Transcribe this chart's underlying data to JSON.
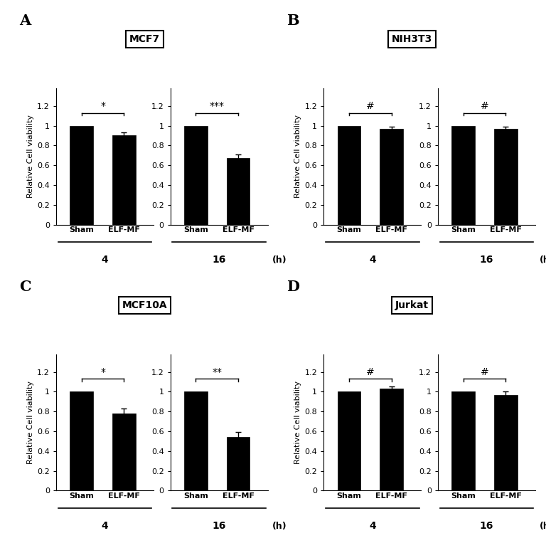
{
  "panels": [
    {
      "label": "A",
      "title": "MCF7",
      "data": [
        {
          "time": "4",
          "sham": 1.0,
          "sham_err": 0.0,
          "elfmf": 0.9,
          "elfmf_err": 0.03,
          "sig": "*"
        },
        {
          "time": "16",
          "sham": 1.0,
          "sham_err": 0.0,
          "elfmf": 0.67,
          "elfmf_err": 0.04,
          "sig": "***"
        }
      ]
    },
    {
      "label": "B",
      "title": "NIH3T3",
      "data": [
        {
          "time": "4",
          "sham": 1.0,
          "sham_err": 0.0,
          "elfmf": 0.97,
          "elfmf_err": 0.02,
          "sig": "#"
        },
        {
          "time": "16",
          "sham": 1.0,
          "sham_err": 0.0,
          "elfmf": 0.97,
          "elfmf_err": 0.02,
          "sig": "#"
        }
      ]
    },
    {
      "label": "C",
      "title": "MCF10A",
      "data": [
        {
          "time": "4",
          "sham": 1.0,
          "sham_err": 0.0,
          "elfmf": 0.78,
          "elfmf_err": 0.05,
          "sig": "*"
        },
        {
          "time": "16",
          "sham": 1.0,
          "sham_err": 0.0,
          "elfmf": 0.54,
          "elfmf_err": 0.05,
          "sig": "**"
        }
      ]
    },
    {
      "label": "D",
      "title": "Jurkat",
      "data": [
        {
          "time": "4",
          "sham": 1.0,
          "sham_err": 0.0,
          "elfmf": 1.03,
          "elfmf_err": 0.02,
          "sig": "#"
        },
        {
          "time": "16",
          "sham": 1.0,
          "sham_err": 0.0,
          "elfmf": 0.97,
          "elfmf_err": 0.03,
          "sig": "#"
        }
      ]
    }
  ],
  "bar_color": "#000000",
  "ylabel": "Relative Cell viability",
  "ylim": [
    0,
    1.38
  ],
  "yticks": [
    0,
    0.2,
    0.4,
    0.6,
    0.8,
    1.0,
    1.2
  ],
  "ytick_labels": [
    "0",
    "0.2",
    "0.4",
    "0.6",
    "0.8",
    "1",
    "1.2"
  ],
  "background_color": "#ffffff"
}
